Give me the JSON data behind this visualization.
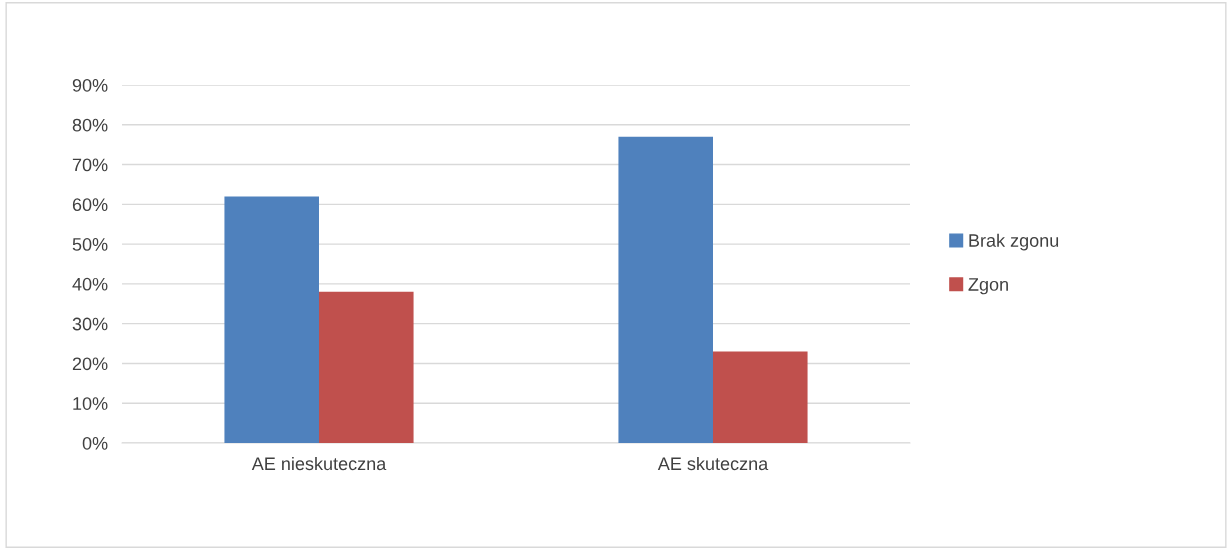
{
  "chart_data": {
    "type": "bar",
    "categories": [
      "AE nieskuteczna",
      "AE skuteczna"
    ],
    "series": [
      {
        "name": "Brak zgonu",
        "color": "#4f81bd",
        "values": [
          62,
          77
        ]
      },
      {
        "name": "Zgon",
        "color": "#c0504d",
        "values": [
          38,
          23
        ]
      }
    ],
    "ylim": [
      0,
      90
    ],
    "yticks": [
      {
        "value": 0,
        "label": "0%"
      },
      {
        "value": 10,
        "label": "10%"
      },
      {
        "value": 20,
        "label": "20%"
      },
      {
        "value": 30,
        "label": "30%"
      },
      {
        "value": 40,
        "label": "40%"
      },
      {
        "value": 50,
        "label": "50%"
      },
      {
        "value": 60,
        "label": "60%"
      },
      {
        "value": 70,
        "label": "70%"
      },
      {
        "value": 80,
        "label": "80%"
      },
      {
        "value": 90,
        "label": "90%"
      }
    ],
    "grid": "y",
    "legend": "right"
  }
}
